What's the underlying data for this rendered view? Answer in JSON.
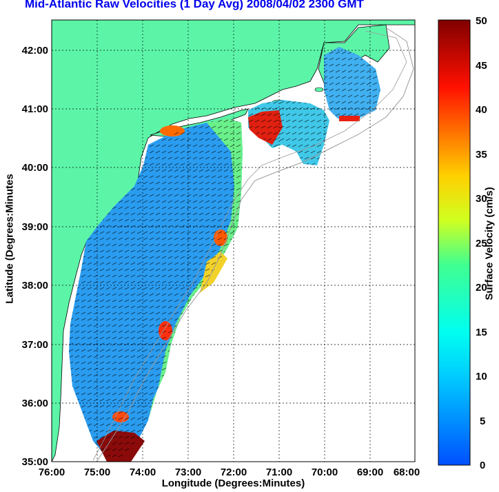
{
  "title": "Mid-Atlantic Raw Velocities (1 Day Avg) 2008/04/02 2300 GMT",
  "axes": {
    "xlabel": "Longitude (Degrees:Minutes)",
    "ylabel": "Latitude (Degrees:Minutes",
    "x_ticks": [
      "76:00",
      "75:00",
      "74:00",
      "73:00",
      "72:00",
      "71:00",
      "70:00",
      "69:00",
      "68:00"
    ],
    "y_ticks": [
      "42:00",
      "41:00",
      "40:00",
      "39:00",
      "38:00",
      "37:00",
      "36:00",
      "35:00"
    ]
  },
  "colorbar": {
    "label": "Surface Velocity (cm/s)",
    "ticks": [
      "50",
      "45",
      "40",
      "35",
      "30",
      "25",
      "20",
      "15",
      "10",
      "5",
      "0"
    ],
    "range": [
      0,
      50
    ]
  },
  "colors": {
    "land": "#5cf5a8",
    "ocean": "#ffffff",
    "title": "#0000ee",
    "grid": "#000000"
  }
}
